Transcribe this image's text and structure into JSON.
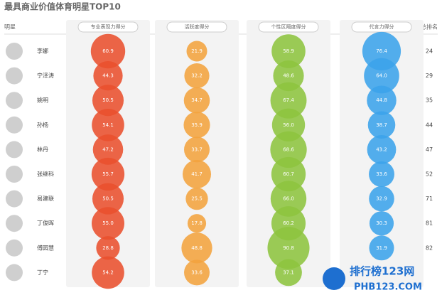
{
  "chart_data": {
    "type": "bubble",
    "title": "最具商业价值体育明星TOP10",
    "category_header": "明星",
    "categories": [
      "李娜",
      "宁泽涛",
      "姚明",
      "孙杨",
      "林丹",
      "张继科",
      "易建联",
      "丁俊晖",
      "傅园慧",
      "丁宁"
    ],
    "series": [
      {
        "name": "专业表现力得分",
        "color": "#e9502e",
        "values": [
          60.9,
          44.3,
          50.5,
          54.1,
          47.2,
          55.7,
          50.5,
          55.0,
          28.8,
          54.2
        ],
        "value_labels": [
          "60.9",
          "44.3",
          "50.5",
          "54.1",
          "47.2",
          "55.7",
          "50.5",
          "55.0",
          "28.8",
          "54.2"
        ]
      },
      {
        "name": "活跃度得分",
        "color": "#f2a33e",
        "values": [
          21.9,
          32.2,
          34.7,
          35.9,
          33.7,
          41.7,
          25.5,
          17.8,
          48.8,
          33.6
        ],
        "value_labels": [
          "21.9",
          "32.2",
          "34.7",
          "35.9",
          "33.7",
          "41.7",
          "25.5",
          "17.8",
          "48.8",
          "33.6"
        ]
      },
      {
        "name": "个性区隔度得分",
        "color": "#8dc43f",
        "values": [
          58.9,
          48.6,
          67.4,
          56.0,
          68.6,
          60.7,
          66.0,
          60.2,
          90.8,
          37.1
        ],
        "value_labels": [
          "58.9",
          "48.6",
          "67.4",
          "56.0",
          "68.6",
          "60.7",
          "66.0",
          "60.2",
          "90.8",
          "37.1"
        ]
      },
      {
        "name": "代言力得分",
        "color": "#3ba3ea",
        "values": [
          76.4,
          64.0,
          44.8,
          38.7,
          43.2,
          33.6,
          32.9,
          30.3,
          31.9,
          null
        ],
        "value_labels": [
          "76.4",
          "64.0",
          "44.8",
          "38.7",
          "43.2",
          "33.6",
          "32.9",
          "30.3",
          "31.9",
          null
        ]
      }
    ],
    "rank_header": "总排名",
    "ranks": [
      24,
      29,
      35,
      44,
      47,
      52,
      71,
      81,
      82,
      null
    ],
    "watermark": "排行榜123网",
    "watermark_url": "PHB123.COM"
  }
}
